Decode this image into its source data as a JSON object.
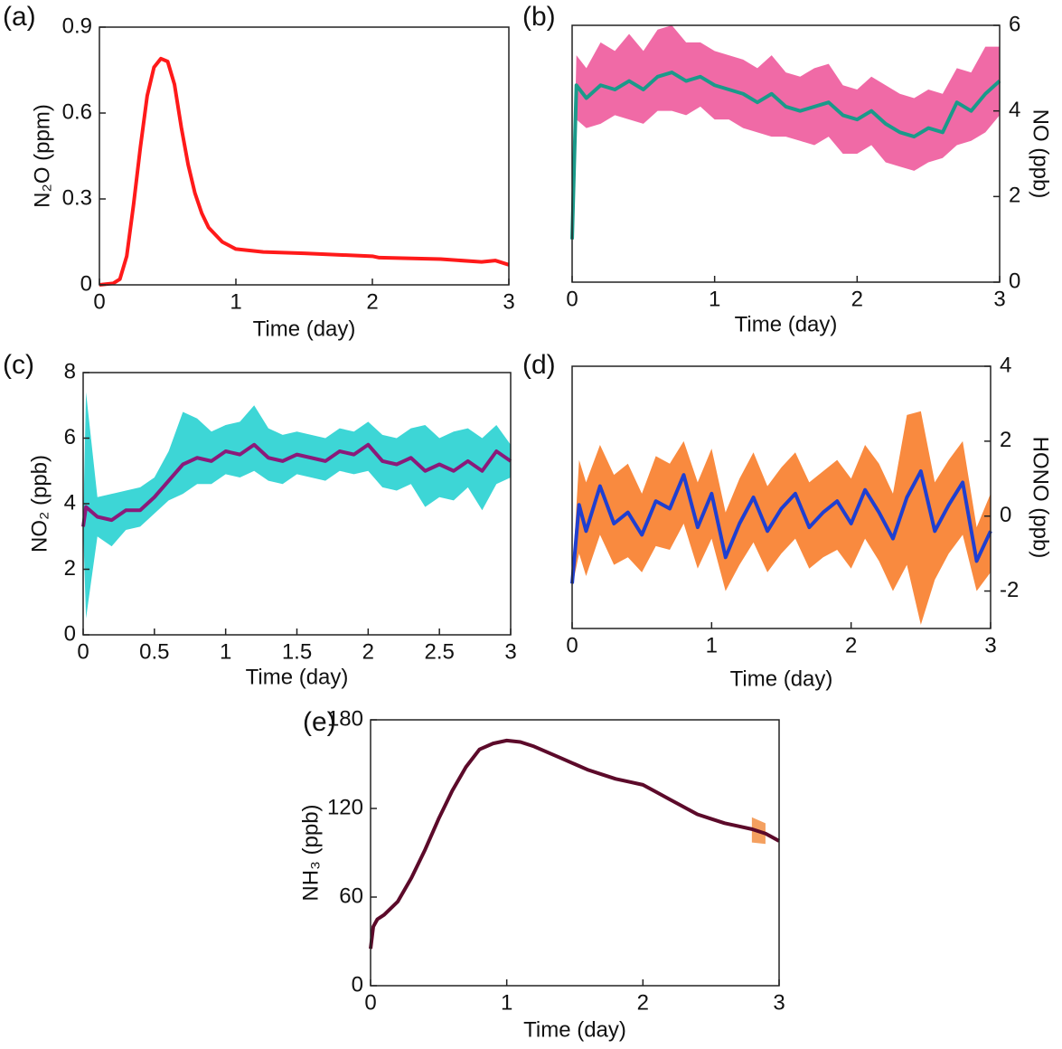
{
  "chart_data": [
    {
      "type": "line",
      "panel_label": "(a)",
      "x_label": "Time (day)",
      "y_label": "N₂O (ppm)",
      "y_axis_side": "left",
      "color": "#ff1a1a",
      "x": [
        0,
        0.1,
        0.15,
        0.2,
        0.25,
        0.3,
        0.35,
        0.4,
        0.45,
        0.5,
        0.55,
        0.6,
        0.65,
        0.7,
        0.75,
        0.8,
        0.9,
        1,
        1.2,
        1.5,
        2,
        2.05,
        2.5,
        2.8,
        2.9,
        3
      ],
      "values": [
        0,
        0.005,
        0.02,
        0.1,
        0.28,
        0.48,
        0.66,
        0.76,
        0.79,
        0.78,
        0.7,
        0.55,
        0.42,
        0.32,
        0.25,
        0.2,
        0.15,
        0.125,
        0.115,
        0.11,
        0.1,
        0.095,
        0.09,
        0.08,
        0.085,
        0.07
      ],
      "xlim": [
        0,
        3
      ],
      "xticks": [
        0,
        1,
        2,
        3
      ],
      "ylim": [
        0,
        0.9
      ],
      "yticks": [
        0,
        0.3,
        0.6,
        0.9
      ]
    },
    {
      "type": "band_line",
      "panel_label": "(b)",
      "x_label": "Time (day)",
      "y_label": "NO (ppb)",
      "y_axis_side": "right",
      "color": "#1a9a8a",
      "band_color": "#f06aa6",
      "x": [
        0,
        0.03,
        0.1,
        0.2,
        0.3,
        0.4,
        0.5,
        0.6,
        0.7,
        0.8,
        0.9,
        1,
        1.1,
        1.2,
        1.3,
        1.4,
        1.5,
        1.6,
        1.7,
        1.8,
        1.9,
        2,
        2.1,
        2.2,
        2.3,
        2.4,
        2.5,
        2.6,
        2.7,
        2.8,
        2.9,
        3
      ],
      "values": [
        1.0,
        4.6,
        4.3,
        4.6,
        4.5,
        4.7,
        4.5,
        4.8,
        4.9,
        4.7,
        4.8,
        4.6,
        4.5,
        4.4,
        4.2,
        4.4,
        4.1,
        4.0,
        4.1,
        4.2,
        3.9,
        3.8,
        4.0,
        3.7,
        3.5,
        3.4,
        3.6,
        3.5,
        4.2,
        4.0,
        4.4,
        4.7
      ],
      "band_lower": [
        1.0,
        3.8,
        3.6,
        3.7,
        3.9,
        3.8,
        3.7,
        4.0,
        4.0,
        3.9,
        4.1,
        3.8,
        3.8,
        3.6,
        3.5,
        3.4,
        3.4,
        3.3,
        3.2,
        3.4,
        3.0,
        3.0,
        3.2,
        2.8,
        2.7,
        2.6,
        2.8,
        2.9,
        3.2,
        3.3,
        3.5,
        3.9
      ],
      "band_upper": [
        1.0,
        5.3,
        5.0,
        5.6,
        5.4,
        5.8,
        5.4,
        5.9,
        6.0,
        5.6,
        5.6,
        5.4,
        5.3,
        5.2,
        5.0,
        5.3,
        4.9,
        4.8,
        5.0,
        5.1,
        4.6,
        4.5,
        4.8,
        4.6,
        4.4,
        4.3,
        4.5,
        4.4,
        5.0,
        4.9,
        5.5,
        5.5
      ],
      "xlim": [
        0,
        3
      ],
      "xticks": [
        0,
        1,
        2,
        3
      ],
      "ylim": [
        0,
        6
      ],
      "yticks": [
        0,
        2,
        4,
        6
      ]
    },
    {
      "type": "band_line",
      "panel_label": "(c)",
      "x_label": "Time (day)",
      "y_label": "NO₂ (ppb)",
      "y_axis_side": "left",
      "color": "#8b1a7a",
      "band_color": "#3dd6d6",
      "x": [
        0,
        0.02,
        0.1,
        0.2,
        0.3,
        0.4,
        0.5,
        0.6,
        0.7,
        0.8,
        0.9,
        1,
        1.1,
        1.2,
        1.3,
        1.4,
        1.5,
        1.6,
        1.7,
        1.8,
        1.9,
        2,
        2.1,
        2.2,
        2.3,
        2.4,
        2.5,
        2.6,
        2.7,
        2.8,
        2.9,
        3
      ],
      "values": [
        3.3,
        3.9,
        3.6,
        3.5,
        3.8,
        3.8,
        4.2,
        4.7,
        5.2,
        5.4,
        5.3,
        5.6,
        5.5,
        5.8,
        5.4,
        5.3,
        5.5,
        5.4,
        5.3,
        5.6,
        5.5,
        5.8,
        5.3,
        5.2,
        5.4,
        5.0,
        5.2,
        5.0,
        5.3,
        5.0,
        5.6,
        5.3
      ],
      "band_lower": [
        3.3,
        0.5,
        3.0,
        2.7,
        3.2,
        3.3,
        3.7,
        4.1,
        4.3,
        4.6,
        4.6,
        4.9,
        4.8,
        5.0,
        4.7,
        4.6,
        4.9,
        4.8,
        4.7,
        5.0,
        4.9,
        5.0,
        4.5,
        4.4,
        4.6,
        3.9,
        4.2,
        4.1,
        4.5,
        3.8,
        4.6,
        4.8
      ],
      "band_upper": [
        3.3,
        7.4,
        4.2,
        4.3,
        4.4,
        4.5,
        4.8,
        5.6,
        6.8,
        6.6,
        6.2,
        6.4,
        6.5,
        7.0,
        6.3,
        6.1,
        6.2,
        6.1,
        6.0,
        6.3,
        6.2,
        6.5,
        6.1,
        6.0,
        6.3,
        6.4,
        6.0,
        6.2,
        6.3,
        6.0,
        6.4,
        5.8
      ],
      "xlim": [
        0,
        3
      ],
      "xticks": [
        0,
        0.5,
        1,
        1.5,
        2,
        2.5,
        3
      ],
      "ylim": [
        0,
        8
      ],
      "yticks": [
        0,
        2,
        4,
        6,
        8
      ]
    },
    {
      "type": "band_line",
      "panel_label": "(d)",
      "x_label": "Time (day)",
      "y_label": "HONO (ppb)",
      "y_axis_side": "right",
      "color": "#1f3fd0",
      "band_color": "#f98a3f",
      "x": [
        0,
        0.05,
        0.1,
        0.2,
        0.3,
        0.4,
        0.5,
        0.6,
        0.7,
        0.8,
        0.9,
        1,
        1.1,
        1.2,
        1.3,
        1.4,
        1.5,
        1.6,
        1.7,
        1.8,
        1.9,
        2,
        2.1,
        2.2,
        2.3,
        2.4,
        2.5,
        2.6,
        2.7,
        2.8,
        2.9,
        3
      ],
      "values": [
        -1.8,
        0.3,
        -0.4,
        0.8,
        -0.2,
        0.1,
        -0.5,
        0.4,
        0.2,
        1.1,
        -0.3,
        0.6,
        -1.1,
        -0.2,
        0.5,
        -0.4,
        0.2,
        0.6,
        -0.3,
        0.1,
        0.4,
        -0.2,
        0.7,
        0.1,
        -0.6,
        0.5,
        1.2,
        -0.4,
        0.3,
        0.9,
        -1.2,
        -0.4
      ],
      "band_lower": [
        -1.9,
        -1.0,
        -1.6,
        -0.5,
        -1.3,
        -1.1,
        -1.5,
        -0.8,
        -0.9,
        -0.2,
        -1.4,
        -0.6,
        -2.0,
        -1.3,
        -0.7,
        -1.5,
        -1.0,
        -0.6,
        -1.4,
        -1.1,
        -0.9,
        -1.4,
        -0.6,
        -1.2,
        -2.0,
        -1.3,
        -2.9,
        -1.7,
        -1.0,
        -0.5,
        -2.0,
        -1.5
      ],
      "band_upper": [
        -1.7,
        1.5,
        0.9,
        1.9,
        1.1,
        1.4,
        0.6,
        1.6,
        1.4,
        2.0,
        0.9,
        1.8,
        0.1,
        1.0,
        1.7,
        0.8,
        1.3,
        1.7,
        0.9,
        1.2,
        1.5,
        1.0,
        1.9,
        1.4,
        0.6,
        2.7,
        2.8,
        0.9,
        1.5,
        2.0,
        -0.3,
        0.6
      ],
      "xlim": [
        0,
        3
      ],
      "xticks": [
        0,
        1,
        2,
        3
      ],
      "ylim": [
        -3,
        4
      ],
      "yticks": [
        -2,
        0,
        2,
        4
      ]
    },
    {
      "type": "band_line",
      "panel_label": "(e)",
      "x_label": "Time (day)",
      "y_label": "NH₃ (ppb)",
      "y_axis_side": "left",
      "color": "#5c0a2a",
      "band_color": "#f4a060",
      "x": [
        0,
        0.02,
        0.05,
        0.1,
        0.2,
        0.3,
        0.4,
        0.5,
        0.6,
        0.7,
        0.8,
        0.9,
        1,
        1.1,
        1.2,
        1.3,
        1.4,
        1.5,
        1.6,
        1.7,
        1.8,
        1.9,
        2,
        2.1,
        2.2,
        2.3,
        2.4,
        2.5,
        2.6,
        2.7,
        2.8,
        2.9,
        3
      ],
      "values": [
        25,
        40,
        45,
        48,
        57,
        73,
        92,
        113,
        132,
        148,
        160,
        164,
        166,
        165,
        162,
        158,
        154,
        150,
        146,
        143,
        140,
        138,
        136,
        131,
        126,
        121,
        116,
        113,
        110,
        108,
        106,
        103,
        98
      ],
      "band_lower": [
        null,
        null,
        null,
        null,
        null,
        null,
        null,
        null,
        null,
        null,
        null,
        null,
        null,
        null,
        null,
        null,
        null,
        null,
        null,
        null,
        null,
        null,
        null,
        null,
        null,
        null,
        null,
        null,
        null,
        null,
        97,
        96,
        null
      ],
      "band_upper": [
        null,
        null,
        null,
        null,
        null,
        null,
        null,
        null,
        null,
        null,
        null,
        null,
        null,
        null,
        null,
        null,
        null,
        null,
        null,
        null,
        null,
        null,
        null,
        null,
        null,
        null,
        null,
        null,
        null,
        null,
        114,
        110,
        null
      ],
      "xlim": [
        0,
        3
      ],
      "xticks": [
        0,
        1,
        2,
        3
      ],
      "ylim": [
        0,
        180
      ],
      "yticks": [
        0,
        60,
        120,
        180
      ]
    }
  ]
}
